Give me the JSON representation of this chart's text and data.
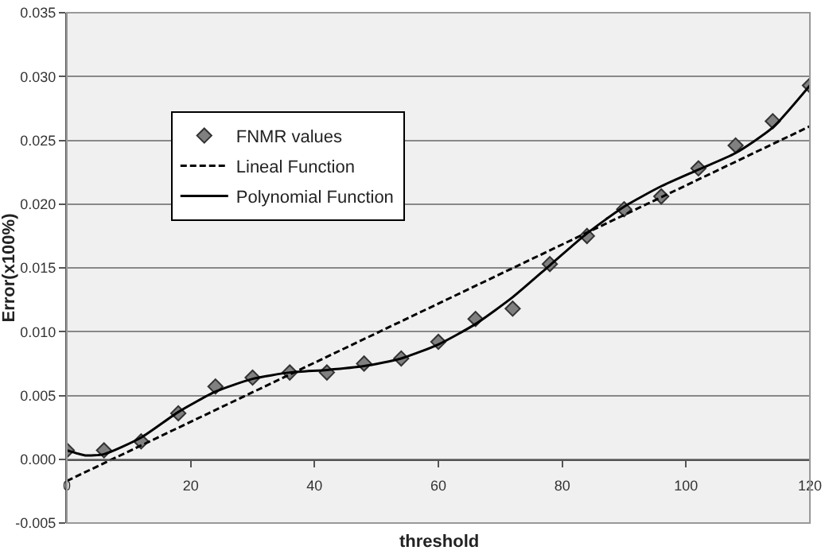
{
  "chart_data": {
    "type": "scatter",
    "xlabel": "threshold",
    "ylabel": "Error(x100%)",
    "xlim": [
      0,
      120
    ],
    "xticks": [
      0,
      20,
      40,
      60,
      80,
      100,
      120
    ],
    "ylim": [
      -0.005,
      0.035
    ],
    "yticks": [
      {
        "value": -0.005,
        "label": "-0.005"
      },
      {
        "value": 0,
        "label": "0.000"
      },
      {
        "value": 0.005,
        "label": "0.005"
      },
      {
        "value": 0.01,
        "label": "0.010"
      },
      {
        "value": 0.015,
        "label": "0.015"
      },
      {
        "value": 0.02,
        "label": "0.020"
      },
      {
        "value": 0.025,
        "label": "0.025"
      },
      {
        "value": 0.03,
        "label": "0.030"
      },
      {
        "value": 0.035,
        "label": "0.035"
      }
    ],
    "grid": "y",
    "legend": "left",
    "series": [
      {
        "name": "FNMR values",
        "marker": "diamond",
        "color": "#808080",
        "x": [
          0,
          6,
          12,
          18,
          24,
          30,
          36,
          42,
          48,
          54,
          60,
          66,
          72,
          78,
          84,
          90,
          96,
          102,
          108,
          114,
          120
        ],
        "values": [
          0.0007,
          0.0007,
          0.0014,
          0.0036,
          0.0057,
          0.0064,
          0.0068,
          0.0068,
          0.0075,
          0.0079,
          0.0092,
          0.011,
          0.0118,
          0.0153,
          0.0175,
          0.0196,
          0.0206,
          0.0228,
          0.0246,
          0.0265,
          0.0293
        ]
      },
      {
        "name": "Lineal Function",
        "type": "line",
        "line_style": "dashed",
        "color": "#000000",
        "x": [
          0,
          120
        ],
        "values": [
          -0.0017,
          0.0261
        ]
      },
      {
        "name": "Polynomial Function",
        "type": "line",
        "line_style": "solid",
        "color": "#000000",
        "x": [
          0,
          3,
          6,
          12,
          18,
          24,
          30,
          36,
          42,
          48,
          54,
          60,
          66,
          72,
          78,
          84,
          90,
          96,
          102,
          108,
          114,
          120
        ],
        "values": [
          0.0007,
          0.0003,
          0.0004,
          0.0017,
          0.0037,
          0.0053,
          0.0063,
          0.0068,
          0.007,
          0.0073,
          0.0079,
          0.009,
          0.0106,
          0.0127,
          0.0152,
          0.0177,
          0.0198,
          0.0214,
          0.0227,
          0.024,
          0.026,
          0.0293
        ]
      }
    ]
  }
}
